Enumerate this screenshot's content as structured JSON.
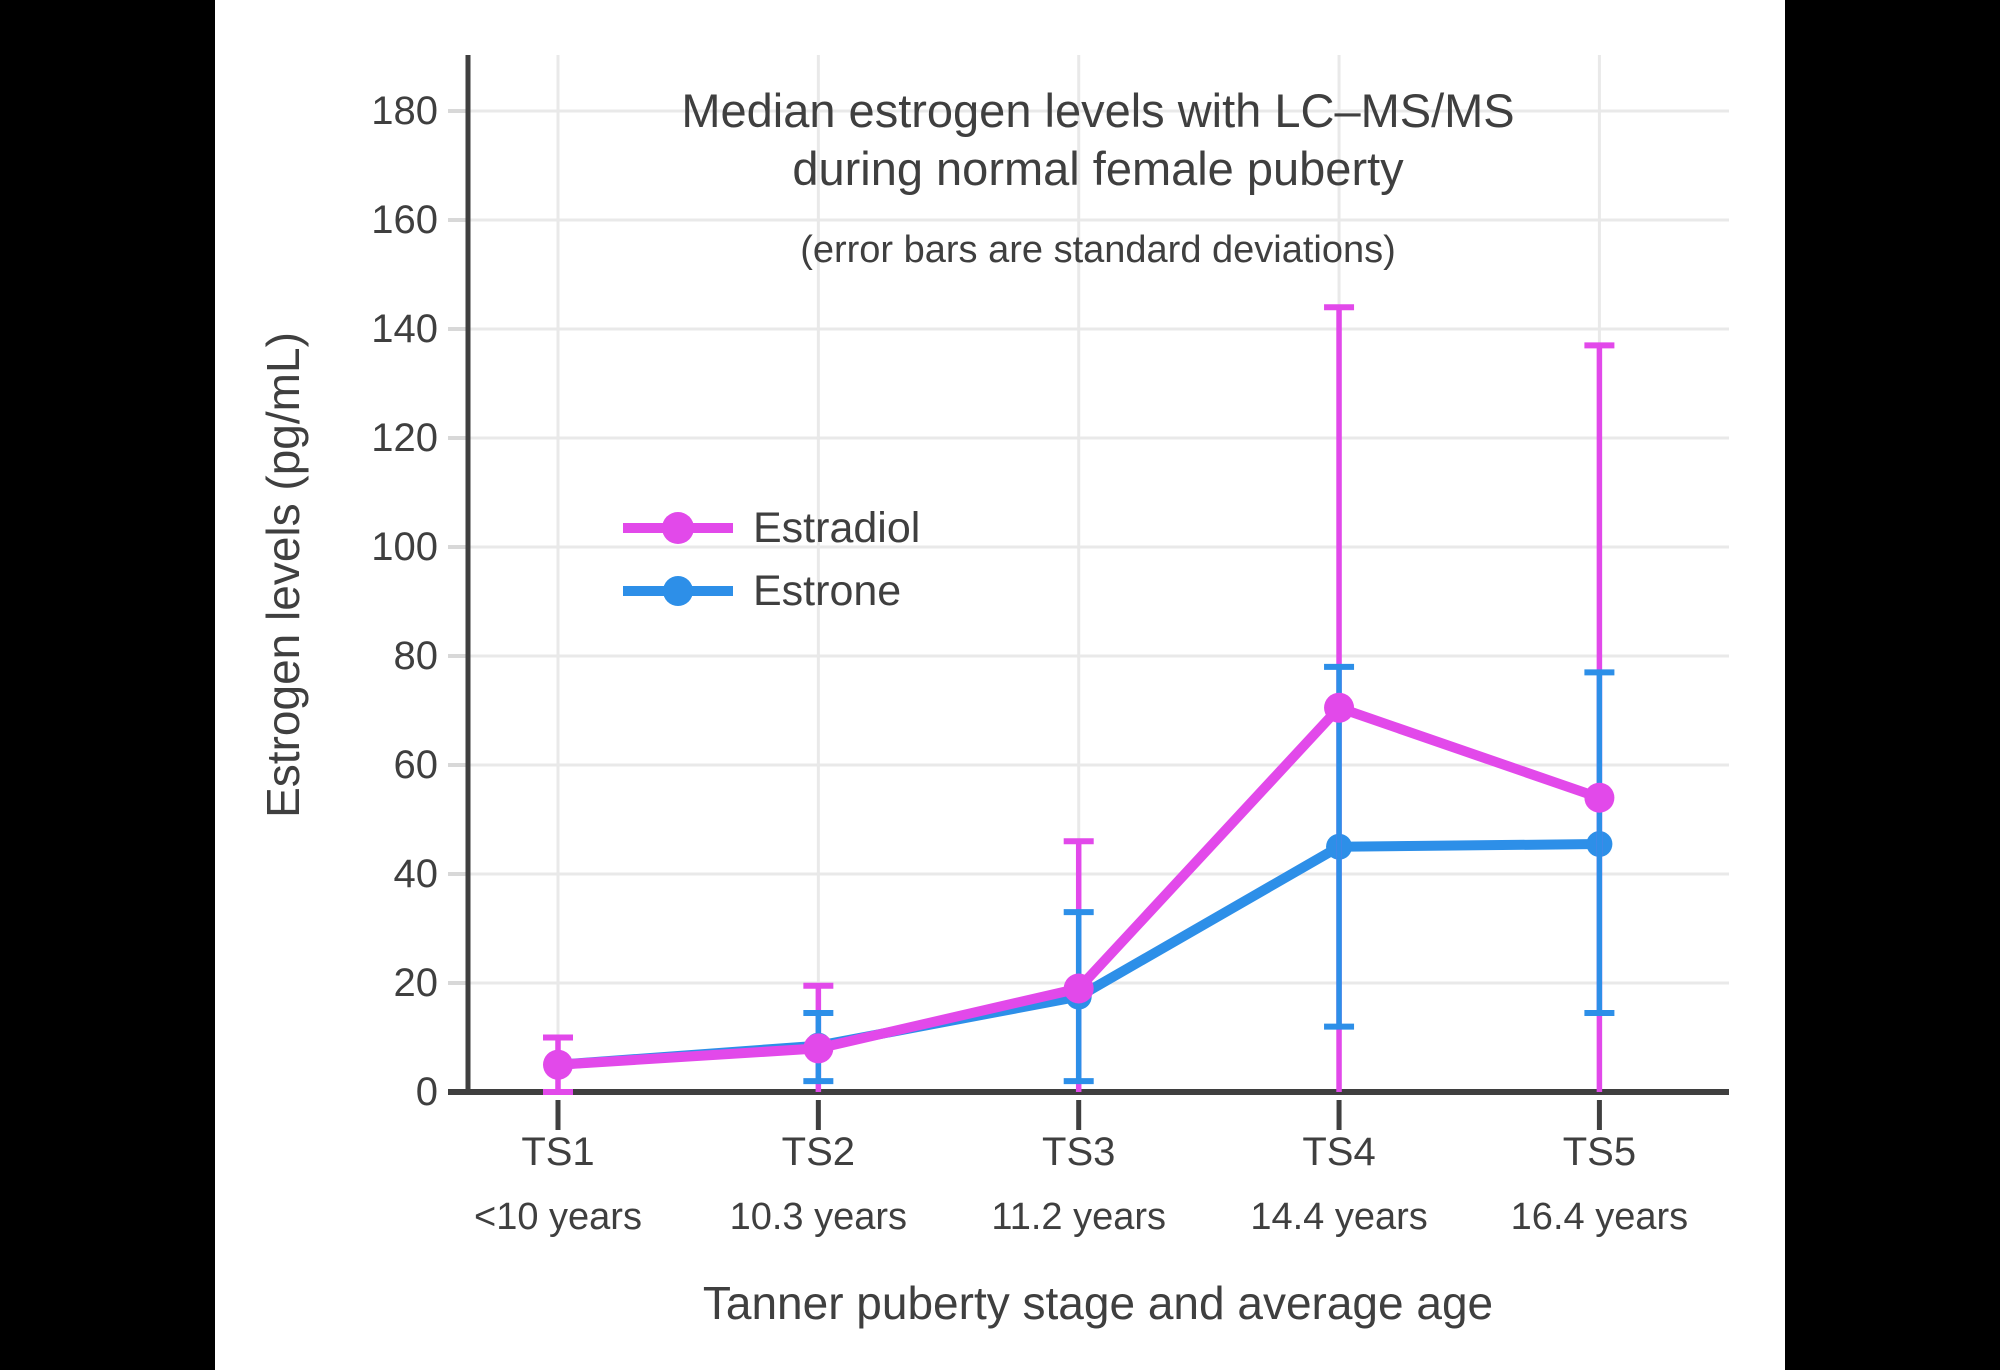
{
  "page": {
    "background": "#000000",
    "panel_background": "#ffffff"
  },
  "chart_data": {
    "type": "line",
    "title_lines": [
      "Median estrogen levels with LC–MS/MS",
      "during normal female puberty"
    ],
    "subtitle": "(error bars are standard deviations)",
    "xlabel": "Tanner puberty stage and average age",
    "ylabel": "Estrogen levels (pg/mL)",
    "categories": [
      "TS1",
      "TS2",
      "TS3",
      "TS4",
      "TS5"
    ],
    "category_ages": [
      "<10 years",
      "10.3 years",
      "11.2 years",
      "14.4 years",
      "16.4 years"
    ],
    "yticks": [
      0,
      20,
      40,
      60,
      80,
      100,
      120,
      140,
      160,
      180
    ],
    "ylim": [
      0,
      189
    ],
    "grid": true,
    "legend_position": "upper-left-inside",
    "series": [
      {
        "name": "Estradiol",
        "color": "#e249ea",
        "values": [
          5,
          8,
          19,
          70.5,
          54
        ],
        "err_upper": [
          10,
          19.5,
          46,
          144,
          137
        ],
        "err_lower": [
          0,
          0,
          0,
          0,
          0
        ],
        "err_lower_cap": [
          true,
          false,
          false,
          false,
          false
        ]
      },
      {
        "name": "Estrone",
        "color": "#2d8fe8",
        "values": [
          5,
          8.5,
          17.5,
          45,
          45.5
        ],
        "err_upper": [
          null,
          14.5,
          33,
          78,
          77
        ],
        "err_lower": [
          null,
          2,
          2,
          12,
          14.5
        ],
        "err_lower_cap": [
          false,
          true,
          true,
          true,
          true
        ]
      }
    ],
    "colors": {
      "axis": "#3f3f3f",
      "text": "#3f3f3f",
      "grid": "#e9e9e9",
      "ytick_dash": "#d8d8d8",
      "xtick": "#3f3f3f"
    }
  }
}
